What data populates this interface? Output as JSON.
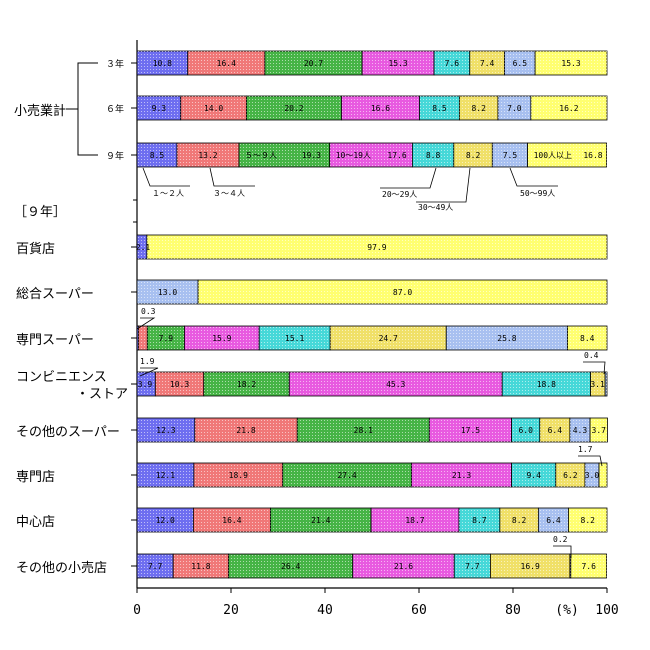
{
  "colors": [
    "#6e6ef0",
    "#f07878",
    "#46b446",
    "#e85ae0",
    "#46d8d8",
    "#f0e068",
    "#a8c0f0",
    "#ffff70"
  ],
  "chart_data": {
    "type": "bar",
    "orientation": "horizontal",
    "stacked": true,
    "xlim": [
      0,
      100
    ],
    "x_ticks": [
      "0",
      "20",
      "40",
      "60",
      "80",
      "(%)",
      "100"
    ],
    "group_label": "小売業計",
    "section_label": "［９年］",
    "series_names": [
      "１～２人",
      "３～４人",
      "５～９人",
      "10～19人",
      "20～29人",
      "30～49人",
      "50～99人",
      "100人以上"
    ],
    "rows": [
      {
        "label": "３年",
        "values": [
          "10.8",
          "16.4",
          "20.7",
          "15.3",
          "7.6",
          "7.4",
          "6.5",
          "15.3"
        ]
      },
      {
        "label": "６年",
        "values": [
          "9.3",
          "14.0",
          "20.2",
          "16.6",
          "8.5",
          "8.2",
          "7.0",
          "16.2"
        ]
      },
      {
        "label": "９年",
        "values": [
          "8.5",
          "13.2",
          "19.3",
          "17.6",
          "8.8",
          "8.2",
          "7.5",
          "16.8"
        ]
      },
      {
        "label": "百貨店",
        "values": [
          "2.1",
          "",
          "",
          "",
          "",
          "",
          "",
          "97.9"
        ]
      },
      {
        "label": "総合スーパー",
        "values": [
          "",
          "",
          "",
          "",
          "",
          "",
          "13.0",
          "87.0"
        ]
      },
      {
        "label": "専門スーパー",
        "values": [
          "0.3",
          "1.9",
          "7.9",
          "15.9",
          "15.1",
          "24.7",
          "25.8",
          "8.4"
        ]
      },
      {
        "label": "コンビニエンス\n・ストア",
        "values": [
          "3.9",
          "10.3",
          "18.2",
          "45.3",
          "18.8",
          "3.1",
          "0.4",
          ""
        ]
      },
      {
        "label": "その他のスーパー",
        "values": [
          "12.3",
          "21.8",
          "28.1",
          "17.5",
          "6.0",
          "6.4",
          "4.3",
          "3.7"
        ]
      },
      {
        "label": "専門店",
        "values": [
          "12.1",
          "18.9",
          "27.4",
          "21.3",
          "9.4",
          "6.2",
          "3.0",
          "1.7"
        ]
      },
      {
        "label": "中心店",
        "values": [
          "12.0",
          "16.4",
          "21.4",
          "18.7",
          "8.7",
          "8.2",
          "6.4",
          "8.2"
        ]
      },
      {
        "label": "その他の小売店",
        "values": [
          "7.7",
          "11.8",
          "26.4",
          "21.6",
          "7.7",
          "16.9",
          "0.2",
          "7.6"
        ]
      }
    ]
  }
}
